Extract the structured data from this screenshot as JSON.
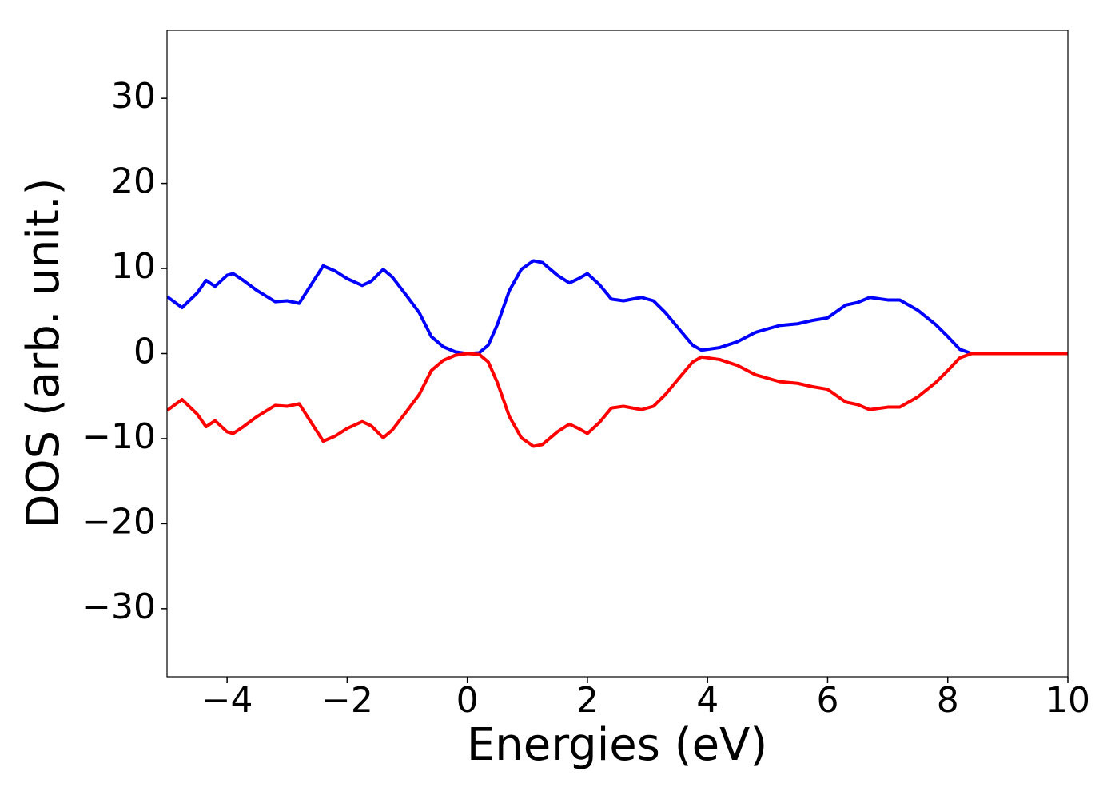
{
  "chart_data": {
    "type": "line",
    "x_label": "Energies (eV)",
    "y_label": "DOS (arb. unit.)",
    "xlim": [
      -5,
      10
    ],
    "ylim": [
      -38,
      38
    ],
    "xticks": [
      {
        "value": -4,
        "label": "−4"
      },
      {
        "value": -2,
        "label": "−2"
      },
      0,
      2,
      4,
      6,
      8,
      10
    ],
    "yticks": [
      {
        "value": -30,
        "label": "−30"
      },
      {
        "value": -20,
        "label": "−20"
      },
      {
        "value": -10,
        "label": "−10"
      },
      0,
      10,
      20,
      30
    ],
    "grid": false,
    "x": [
      -5,
      -4.75,
      -4.5,
      -4.35,
      -4.2,
      -4.0,
      -3.9,
      -3.75,
      -3.5,
      -3.2,
      -3.0,
      -2.8,
      -2.6,
      -2.4,
      -2.2,
      -2.0,
      -1.75,
      -1.6,
      -1.4,
      -1.25,
      -1.0,
      -0.8,
      -0.6,
      -0.4,
      -0.2,
      0,
      0.2,
      0.35,
      0.5,
      0.7,
      0.9,
      1.1,
      1.25,
      1.5,
      1.7,
      1.85,
      2.0,
      2.2,
      2.4,
      2.6,
      2.9,
      3.1,
      3.3,
      3.5,
      3.75,
      3.9,
      4.2,
      4.5,
      4.8,
      5.0,
      5.2,
      5.5,
      5.75,
      6.0,
      6.3,
      6.5,
      6.7,
      7.0,
      7.2,
      7.5,
      7.8,
      8.0,
      8.2,
      8.4,
      8.6,
      10
    ],
    "series": [
      {
        "color": "#0000ff",
        "values": [
          6.7,
          5.4,
          7.1,
          8.6,
          7.9,
          9.2,
          9.4,
          8.7,
          7.4,
          6.1,
          6.2,
          5.9,
          8.1,
          10.3,
          9.7,
          8.8,
          8.0,
          8.5,
          9.9,
          9.0,
          6.7,
          4.8,
          2.0,
          0.8,
          0.2,
          0,
          0.1,
          1.0,
          3.4,
          7.4,
          9.9,
          10.9,
          10.7,
          9.2,
          8.3,
          8.8,
          9.4,
          8.1,
          6.4,
          6.2,
          6.6,
          6.2,
          4.8,
          3.1,
          1.0,
          0.4,
          0.7,
          1.4,
          2.5,
          2.9,
          3.3,
          3.5,
          3.9,
          4.2,
          5.7,
          6.0,
          6.6,
          6.3,
          6.3,
          5.1,
          3.4,
          2.0,
          0.5,
          0,
          0,
          0
        ]
      },
      {
        "color": "#ff0000",
        "values": [
          -6.7,
          -5.4,
          -7.1,
          -8.6,
          -7.9,
          -9.2,
          -9.4,
          -8.7,
          -7.4,
          -6.1,
          -6.2,
          -5.9,
          -8.1,
          -10.3,
          -9.7,
          -8.8,
          -8.0,
          -8.5,
          -9.9,
          -9.0,
          -6.7,
          -4.8,
          -2.0,
          -0.8,
          -0.2,
          0,
          -0.1,
          -1.0,
          -3.4,
          -7.4,
          -9.9,
          -10.9,
          -10.7,
          -9.2,
          -8.3,
          -8.8,
          -9.4,
          -8.1,
          -6.4,
          -6.2,
          -6.6,
          -6.2,
          -4.8,
          -3.1,
          -1.0,
          -0.4,
          -0.7,
          -1.4,
          -2.5,
          -2.9,
          -3.3,
          -3.5,
          -3.9,
          -4.2,
          -5.7,
          -6.0,
          -6.6,
          -6.3,
          -6.3,
          -5.1,
          -3.4,
          -2.0,
          -0.5,
          0,
          0,
          0
        ]
      }
    ]
  }
}
